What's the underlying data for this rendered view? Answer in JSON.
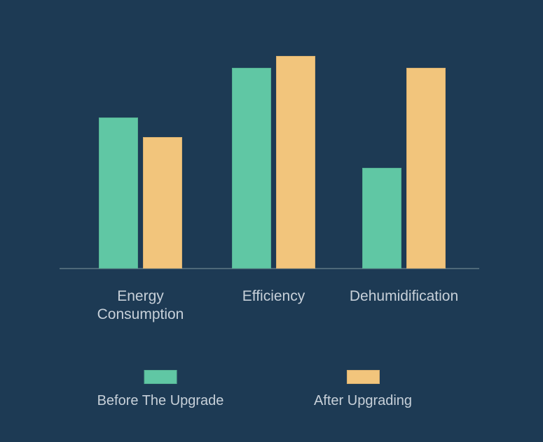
{
  "app": {
    "background_color": "#1D3A54"
  },
  "chart_data": {
    "type": "bar",
    "title": "",
    "xlabel": "",
    "ylabel": "",
    "categories": [
      "Energy Consumption",
      "Efficiency",
      "Dehumidification"
    ],
    "series": [
      {
        "name": "Before The Upgrade",
        "color": "#60C7A4",
        "values": [
          71,
          94.5,
          47.5
        ]
      },
      {
        "name": "After Upgrading",
        "color": "#F2C57C",
        "values": [
          62,
          100,
          94.5
        ]
      }
    ],
    "ylim": [
      0,
      100
    ],
    "y_axis_visible": false,
    "x_axis_line_visible": true,
    "grid": false,
    "legend_position": "bottom",
    "colors": {
      "background": "#1D3A54",
      "axis_line": "#4E6879",
      "label_text": "#C7D0D9"
    }
  }
}
